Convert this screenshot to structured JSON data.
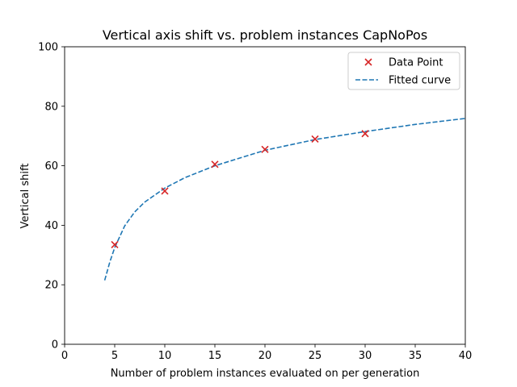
{
  "chart_data": {
    "type": "scatter",
    "title": "Vertical axis shift vs. problem instances CapNoPos",
    "xlabel": "Number of problem instances evaluated on per generation",
    "ylabel": "Vertical shift",
    "xlim": [
      0,
      40
    ],
    "ylim": [
      0,
      100
    ],
    "xticks": [
      "0",
      "5",
      "10",
      "15",
      "20",
      "25",
      "30",
      "35",
      "40"
    ],
    "yticks": [
      "0",
      "20",
      "40",
      "60",
      "80",
      "100"
    ],
    "grid": false,
    "legend_position": "top-right",
    "series": [
      {
        "name": "Data Point",
        "kind": "scatter",
        "marker": "x",
        "color": "#d62728",
        "x": [
          5,
          10,
          15,
          20,
          25,
          30
        ],
        "y": [
          33.5,
          51.5,
          60.5,
          65.5,
          69,
          70.8
        ]
      },
      {
        "name": "Fitted curve",
        "kind": "line",
        "style": "dashed",
        "color": "#1f77b4",
        "x": [
          4,
          4.5,
          5,
          6,
          7,
          8,
          10,
          12,
          15,
          20,
          25,
          30,
          35,
          40
        ],
        "y": [
          21.5,
          27.5,
          32.5,
          39.8,
          44.5,
          47.8,
          52.5,
          56,
          60,
          65.2,
          68.8,
          71.5,
          73.9,
          75.9
        ]
      }
    ]
  }
}
